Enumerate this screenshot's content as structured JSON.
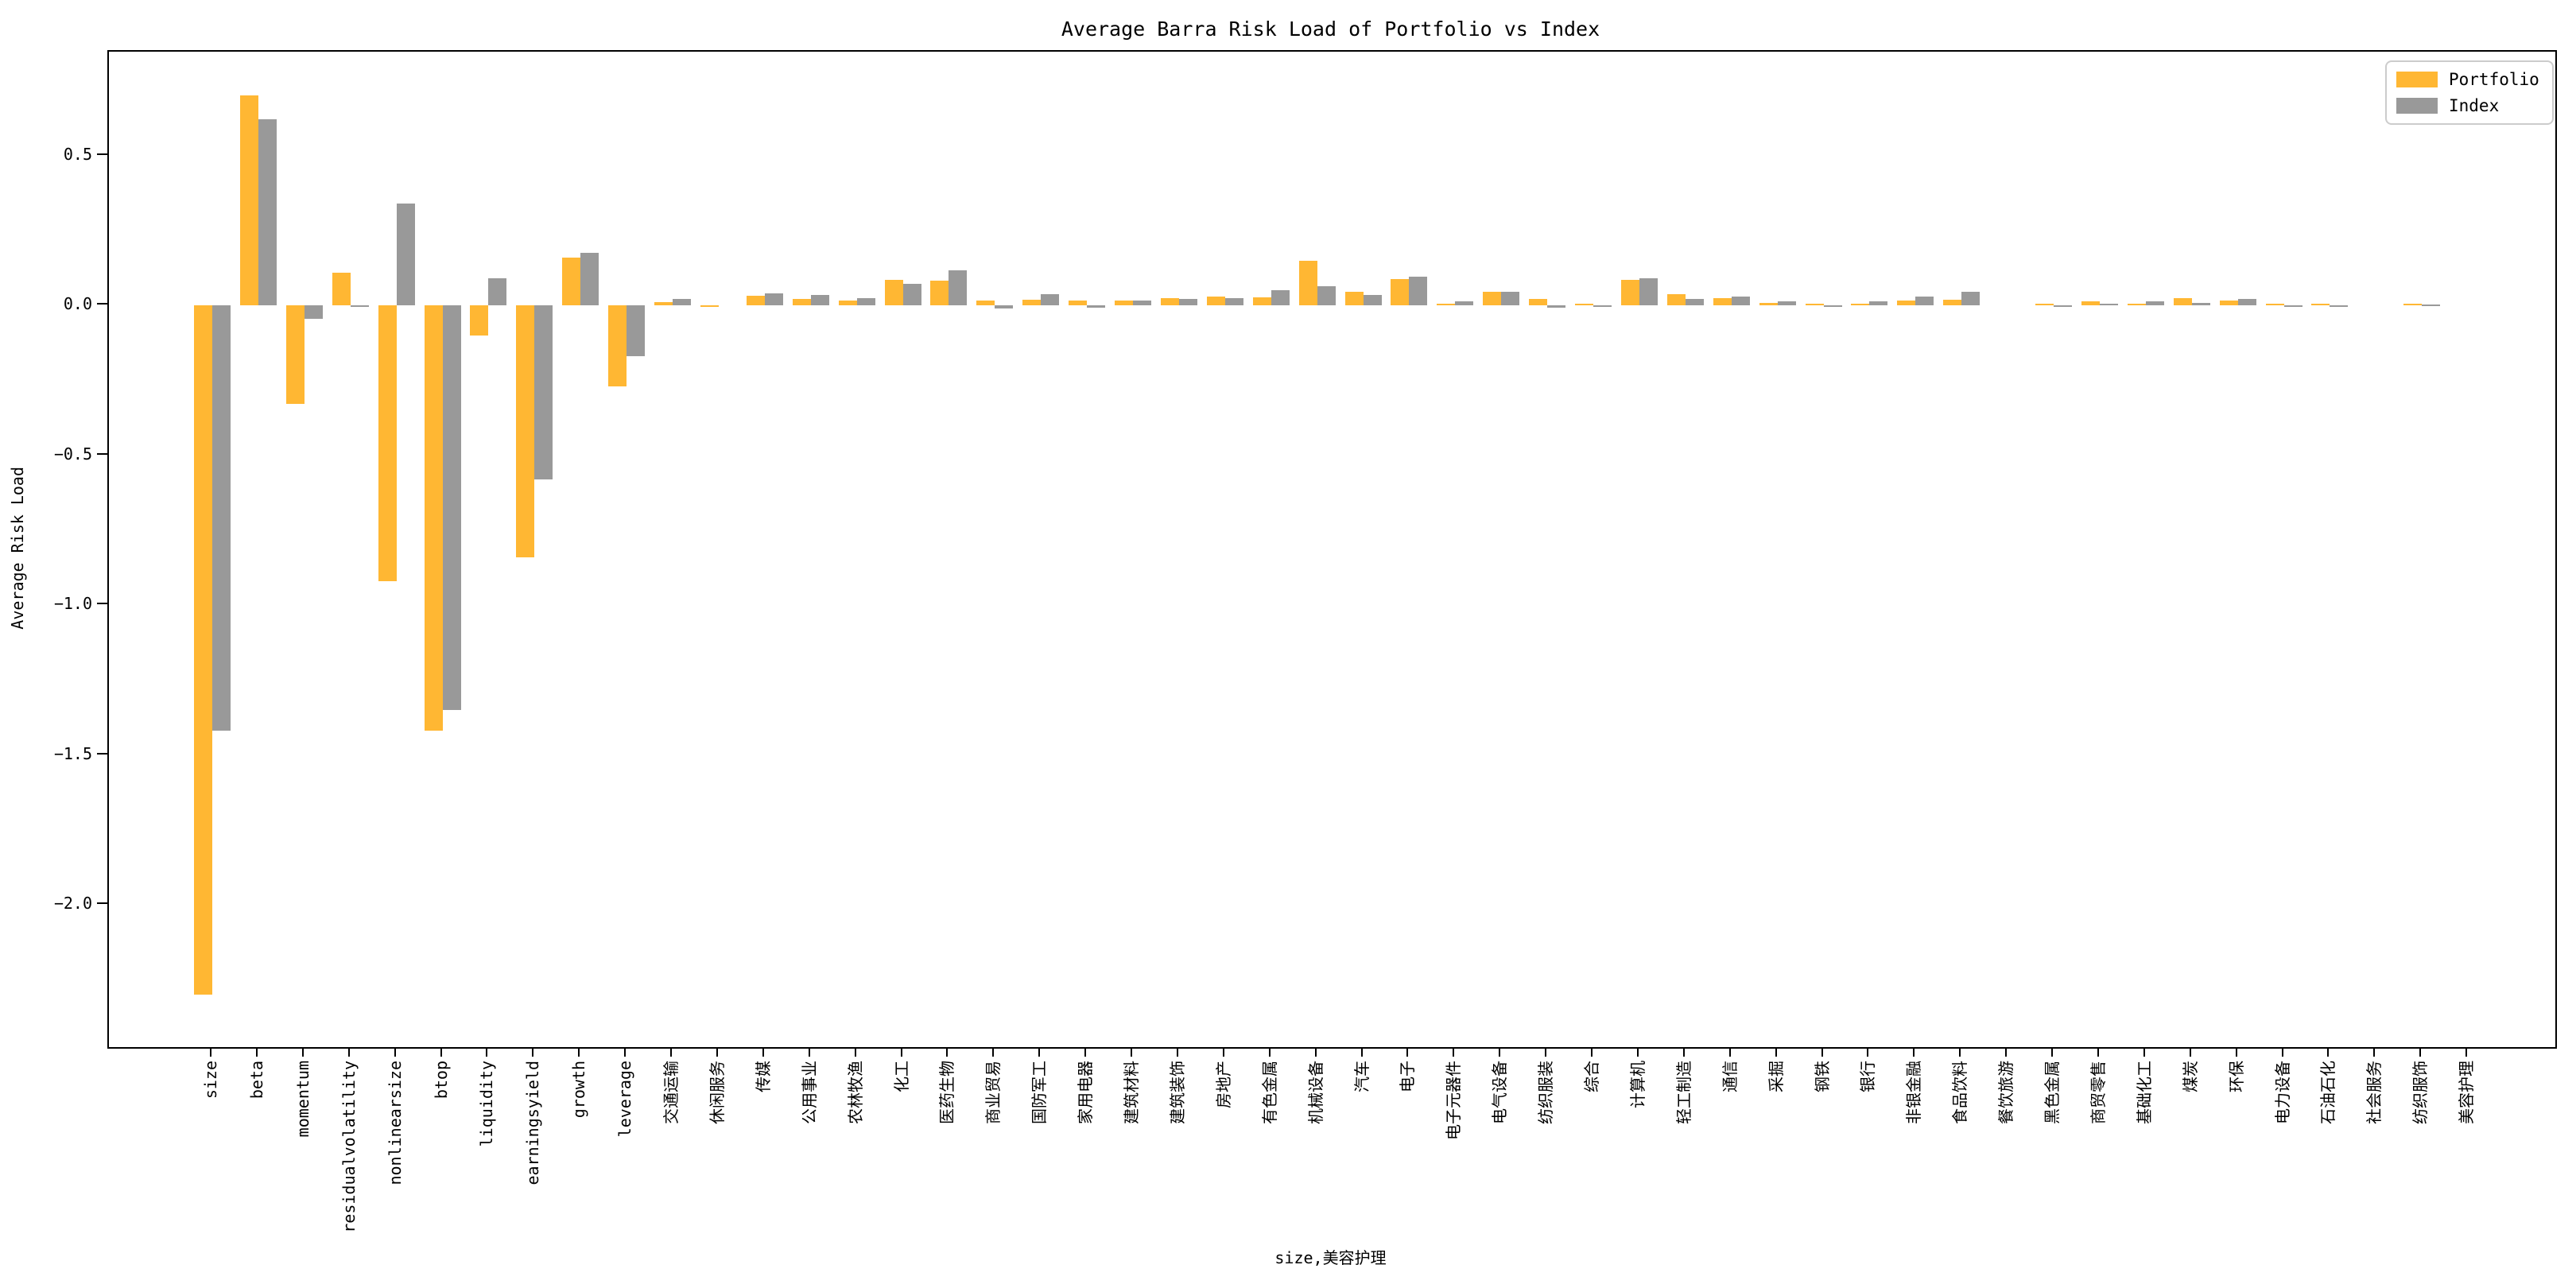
{
  "figure": {
    "title": "Average Barra Risk Load of Portfolio vs Index",
    "ylabel": "Average Risk Load",
    "xlabel": "size,美容护理"
  },
  "legend": {
    "items": [
      {
        "label": "Portfolio",
        "color": "#FFB733"
      },
      {
        "label": "Index",
        "color": "#999999"
      }
    ]
  },
  "chart_data": {
    "type": "bar",
    "title": "Average Barra Risk Load of Portfolio vs Index",
    "xlabel": "size,美容护理",
    "ylabel": "Average Risk Load",
    "ylim": [
      -2.48,
      0.85
    ],
    "yticks": [
      0.5,
      0.0,
      -0.5,
      -1.0,
      -1.5,
      -2.0
    ],
    "ytick_labels": [
      "0.5",
      "0.0",
      "−0.5",
      "−1.0",
      "−1.5",
      "−2.0"
    ],
    "grid": false,
    "legend_position": "upper right",
    "bar_orientation": "vertical",
    "categories": [
      "size",
      "beta",
      "momentum",
      "residualvolatility",
      "nonlinearsize",
      "btop",
      "liquidity",
      "earningsyield",
      "growth",
      "leverage",
      "交通运输",
      "休闲服务",
      "传媒",
      "公用事业",
      "农林牧渔",
      "化工",
      "医药生物",
      "商业贸易",
      "国防军工",
      "家用电器",
      "建筑材料",
      "建筑装饰",
      "房地产",
      "有色金属",
      "机械设备",
      "汽车",
      "电子",
      "电子元器件",
      "电气设备",
      "纺织服装",
      "综合",
      "计算机",
      "轻工制造",
      "通信",
      "采掘",
      "钢铁",
      "银行",
      "非银金融",
      "食品饮料",
      "餐饮旅游",
      "黑色金属",
      "商贸零售",
      "基础化工",
      "煤炭",
      "环保",
      "电力设备",
      "石油石化",
      "社会服务",
      "纺织服饰",
      "美容护理"
    ],
    "series": [
      {
        "name": "Portfolio",
        "color": "#FFB733",
        "values": [
          -2.3,
          0.7,
          -0.33,
          0.11,
          -0.92,
          -1.42,
          -0.1,
          -0.84,
          0.16,
          -0.27,
          0.01,
          -0.006,
          0.033,
          0.02,
          0.015,
          0.086,
          0.082,
          0.016,
          0.018,
          0.017,
          0.016,
          0.025,
          0.03,
          0.026,
          0.148,
          0.045,
          0.088,
          0.005,
          0.046,
          0.022,
          0.005,
          0.084,
          0.037,
          0.025,
          0.008,
          0.005,
          0.005,
          0.015,
          0.018,
          0.0,
          0.005,
          0.014,
          0.004,
          0.025,
          0.015,
          0.005,
          0.005,
          0.0,
          0.006,
          0.0
        ]
      },
      {
        "name": "Index",
        "color": "#999999",
        "values": [
          -1.42,
          0.62,
          -0.045,
          -0.005,
          0.34,
          -1.35,
          0.09,
          -0.58,
          0.175,
          -0.17,
          0.02,
          0.0,
          0.041,
          0.034,
          0.023,
          0.072,
          0.117,
          -0.01,
          0.038,
          -0.008,
          0.015,
          0.022,
          0.025,
          0.05,
          0.064,
          0.035,
          0.096,
          0.012,
          0.044,
          -0.008,
          -0.005,
          0.09,
          0.021,
          0.03,
          0.012,
          -0.003,
          0.012,
          0.028,
          0.045,
          0.0,
          -0.003,
          0.006,
          0.012,
          0.008,
          0.02,
          -0.003,
          -0.003,
          0.0,
          0.003,
          0.0
        ]
      }
    ]
  }
}
